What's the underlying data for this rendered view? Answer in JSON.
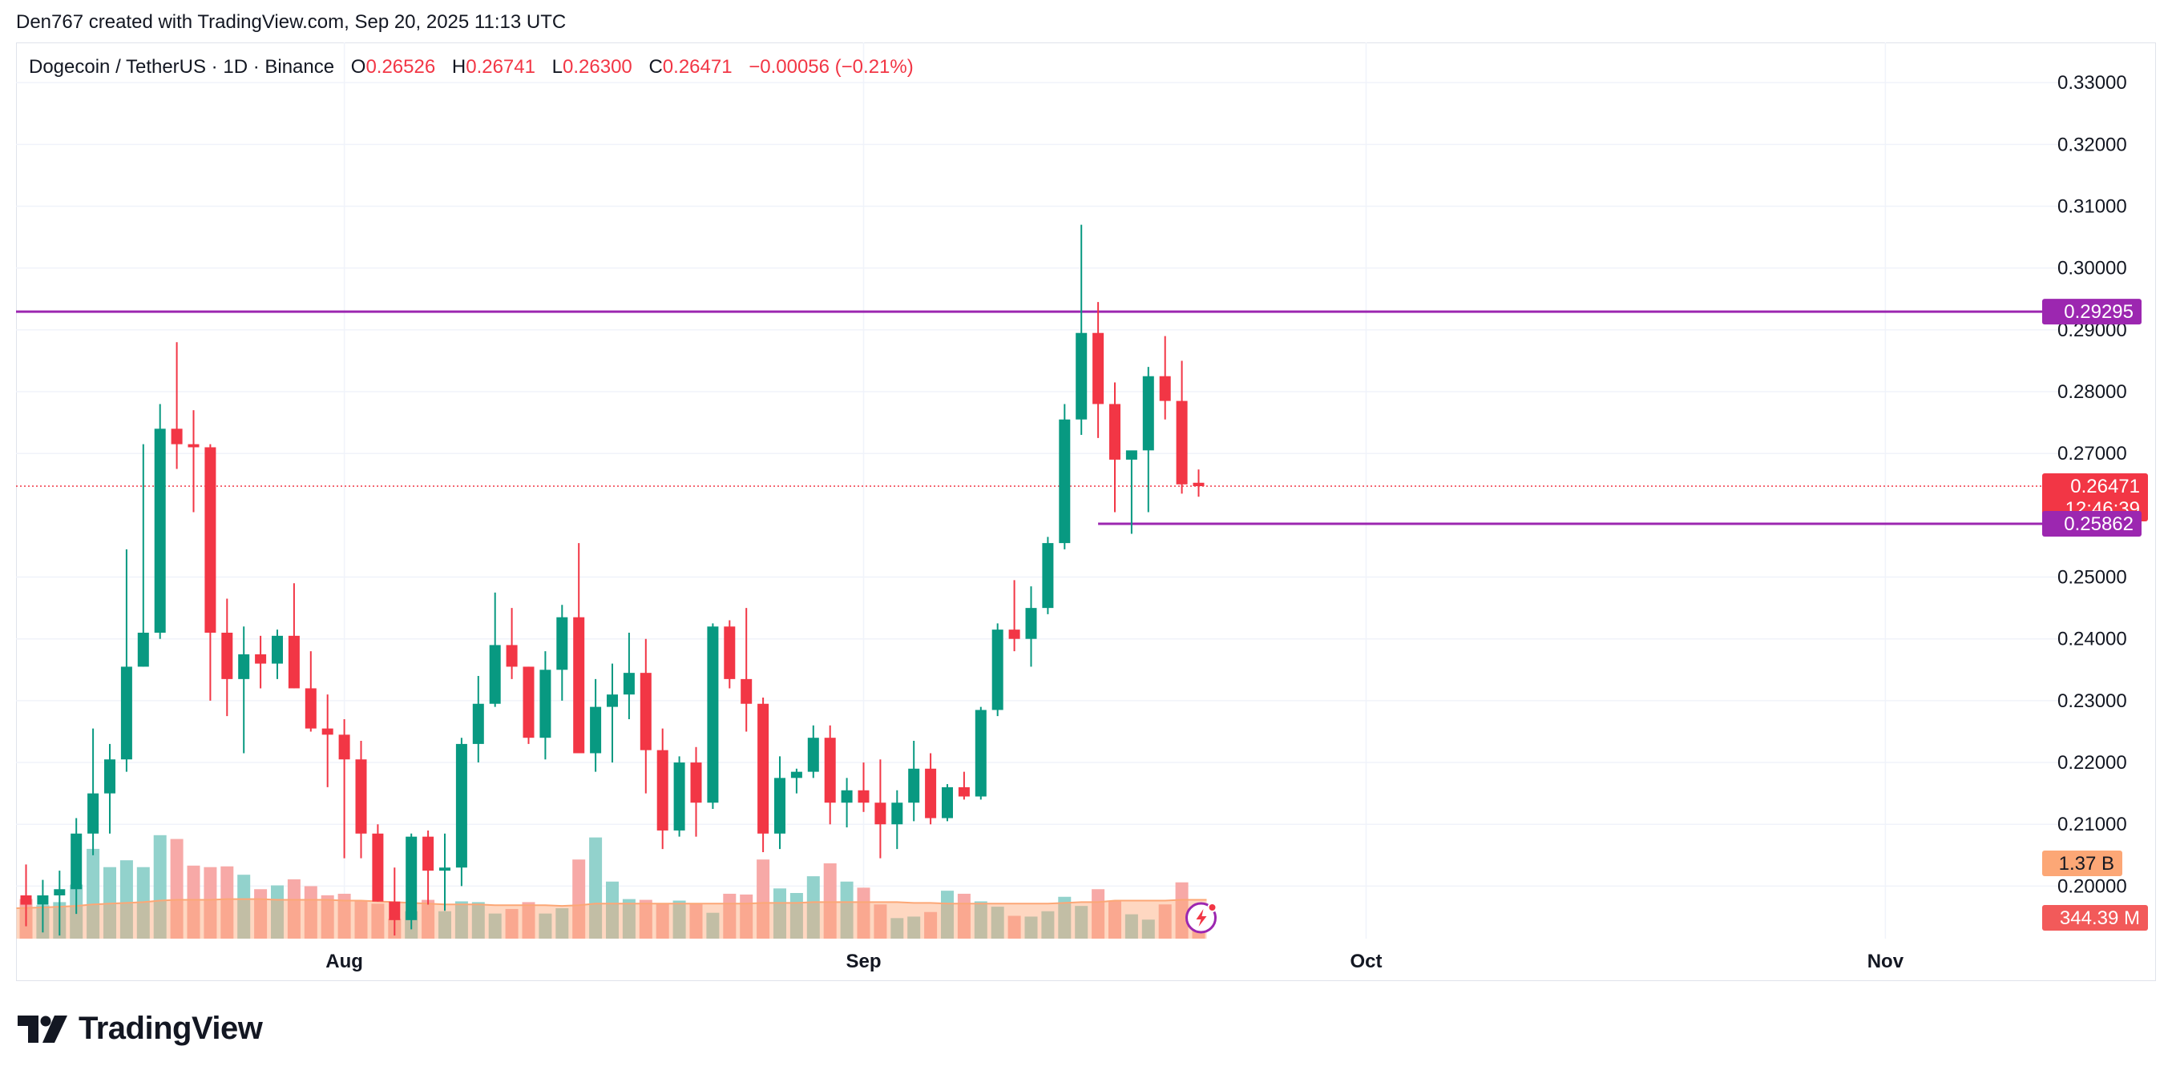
{
  "header": {
    "credit": "Den767 created with TradingView.com, Sep 20, 2025 11:13 UTC"
  },
  "legend": {
    "symbol": "Dogecoin / TetherUS · 1D · Binance",
    "o_label": "O",
    "o_value": "0.26526",
    "h_label": "H",
    "h_value": "0.26741",
    "l_label": "L",
    "l_value": "0.26300",
    "c_label": "C",
    "c_value": "0.26471",
    "change": "−0.00056 (−0.21%)"
  },
  "footer": {
    "brand": "TradingView"
  },
  "colors": {
    "up": "#089981",
    "down": "#f23645",
    "up_volume": "#92d2cc",
    "down_volume": "#f7a9a7",
    "volume_ma": "#fca776",
    "level_line": "#9c27b0",
    "grid": "#f0f3fa"
  },
  "chart_data": {
    "type": "candlestick",
    "title": "Dogecoin / TetherUS · 1D · Binance",
    "y_axis": {
      "ticks": [
        "0.33000",
        "0.32000",
        "0.31000",
        "0.30000",
        "0.29000",
        "0.28000",
        "0.27000",
        "0.25000",
        "0.24000",
        "0.23000",
        "0.22000",
        "0.21000",
        "0.20000"
      ],
      "ylim": [
        0.1915,
        0.3365
      ]
    },
    "x_axis": {
      "ticks": [
        {
          "label": "Aug",
          "index": 19
        },
        {
          "label": "Sep",
          "index": 50
        },
        {
          "label": "Oct",
          "index": 80
        },
        {
          "label": "Nov",
          "index": 111
        }
      ],
      "visible_days": 123
    },
    "price_labels": {
      "resistance": "0.29295",
      "support": "0.25862",
      "last_price": "0.26471",
      "countdown": "12:46:39",
      "volume_ma": "1.37 B",
      "volume": "344.39 M"
    },
    "levels": [
      {
        "name": "resistance",
        "value": 0.29295,
        "from_index": -1
      },
      {
        "name": "support",
        "value": 0.25862,
        "from_index": 64
      }
    ],
    "last_price": 0.26471,
    "candles": [
      {
        "o": 0.1985,
        "h": 0.2035,
        "l": 0.1935,
        "c": 0.197
      },
      {
        "o": 0.197,
        "h": 0.201,
        "l": 0.1925,
        "c": 0.1985
      },
      {
        "o": 0.1985,
        "h": 0.2025,
        "l": 0.192,
        "c": 0.1995
      },
      {
        "o": 0.1995,
        "h": 0.211,
        "l": 0.1955,
        "c": 0.2085
      },
      {
        "o": 0.2085,
        "h": 0.2255,
        "l": 0.205,
        "c": 0.215
      },
      {
        "o": 0.215,
        "h": 0.223,
        "l": 0.2085,
        "c": 0.2205
      },
      {
        "o": 0.2205,
        "h": 0.2545,
        "l": 0.2185,
        "c": 0.2355
      },
      {
        "o": 0.2355,
        "h": 0.2715,
        "l": 0.2355,
        "c": 0.241
      },
      {
        "o": 0.241,
        "h": 0.278,
        "l": 0.24,
        "c": 0.274
      },
      {
        "o": 0.274,
        "h": 0.288,
        "l": 0.2675,
        "c": 0.2715
      },
      {
        "o": 0.2715,
        "h": 0.277,
        "l": 0.2605,
        "c": 0.271
      },
      {
        "o": 0.271,
        "h": 0.2715,
        "l": 0.23,
        "c": 0.241
      },
      {
        "o": 0.241,
        "h": 0.2465,
        "l": 0.2275,
        "c": 0.2335
      },
      {
        "o": 0.2335,
        "h": 0.242,
        "l": 0.2215,
        "c": 0.2375
      },
      {
        "o": 0.2375,
        "h": 0.2405,
        "l": 0.232,
        "c": 0.236
      },
      {
        "o": 0.236,
        "h": 0.2415,
        "l": 0.2335,
        "c": 0.2405
      },
      {
        "o": 0.2405,
        "h": 0.249,
        "l": 0.232,
        "c": 0.232
      },
      {
        "o": 0.232,
        "h": 0.238,
        "l": 0.225,
        "c": 0.2255
      },
      {
        "o": 0.2255,
        "h": 0.231,
        "l": 0.216,
        "c": 0.2245
      },
      {
        "o": 0.2245,
        "h": 0.227,
        "l": 0.2045,
        "c": 0.2205
      },
      {
        "o": 0.2205,
        "h": 0.2235,
        "l": 0.2045,
        "c": 0.2085
      },
      {
        "o": 0.2085,
        "h": 0.21,
        "l": 0.1975,
        "c": 0.1975
      },
      {
        "o": 0.1975,
        "h": 0.203,
        "l": 0.192,
        "c": 0.1945
      },
      {
        "o": 0.1945,
        "h": 0.2085,
        "l": 0.193,
        "c": 0.208
      },
      {
        "o": 0.208,
        "h": 0.209,
        "l": 0.197,
        "c": 0.2025
      },
      {
        "o": 0.2025,
        "h": 0.2085,
        "l": 0.196,
        "c": 0.203
      },
      {
        "o": 0.203,
        "h": 0.224,
        "l": 0.2,
        "c": 0.223
      },
      {
        "o": 0.223,
        "h": 0.234,
        "l": 0.22,
        "c": 0.2295
      },
      {
        "o": 0.2295,
        "h": 0.2475,
        "l": 0.229,
        "c": 0.239
      },
      {
        "o": 0.239,
        "h": 0.245,
        "l": 0.2335,
        "c": 0.2355
      },
      {
        "o": 0.2355,
        "h": 0.2355,
        "l": 0.223,
        "c": 0.224
      },
      {
        "o": 0.224,
        "h": 0.238,
        "l": 0.2205,
        "c": 0.235
      },
      {
        "o": 0.235,
        "h": 0.2455,
        "l": 0.23,
        "c": 0.2435
      },
      {
        "o": 0.2435,
        "h": 0.2555,
        "l": 0.2225,
        "c": 0.2215
      },
      {
        "o": 0.2215,
        "h": 0.2335,
        "l": 0.2185,
        "c": 0.229
      },
      {
        "o": 0.229,
        "h": 0.236,
        "l": 0.22,
        "c": 0.231
      },
      {
        "o": 0.231,
        "h": 0.241,
        "l": 0.227,
        "c": 0.2345
      },
      {
        "o": 0.2345,
        "h": 0.24,
        "l": 0.215,
        "c": 0.222
      },
      {
        "o": 0.222,
        "h": 0.2255,
        "l": 0.206,
        "c": 0.209
      },
      {
        "o": 0.209,
        "h": 0.221,
        "l": 0.208,
        "c": 0.22
      },
      {
        "o": 0.22,
        "h": 0.2225,
        "l": 0.208,
        "c": 0.2135
      },
      {
        "o": 0.2135,
        "h": 0.2425,
        "l": 0.2125,
        "c": 0.242
      },
      {
        "o": 0.242,
        "h": 0.243,
        "l": 0.232,
        "c": 0.2335
      },
      {
        "o": 0.2335,
        "h": 0.245,
        "l": 0.225,
        "c": 0.2295
      },
      {
        "o": 0.2295,
        "h": 0.2305,
        "l": 0.2055,
        "c": 0.2085
      },
      {
        "o": 0.2085,
        "h": 0.221,
        "l": 0.206,
        "c": 0.2175
      },
      {
        "o": 0.2175,
        "h": 0.219,
        "l": 0.215,
        "c": 0.2185
      },
      {
        "o": 0.2185,
        "h": 0.226,
        "l": 0.2175,
        "c": 0.224
      },
      {
        "o": 0.224,
        "h": 0.226,
        "l": 0.21,
        "c": 0.2135
      },
      {
        "o": 0.2135,
        "h": 0.2175,
        "l": 0.2095,
        "c": 0.2155
      },
      {
        "o": 0.2155,
        "h": 0.22,
        "l": 0.212,
        "c": 0.2135
      },
      {
        "o": 0.2135,
        "h": 0.2205,
        "l": 0.2045,
        "c": 0.21
      },
      {
        "o": 0.21,
        "h": 0.2155,
        "l": 0.206,
        "c": 0.2135
      },
      {
        "o": 0.2135,
        "h": 0.2235,
        "l": 0.2105,
        "c": 0.219
      },
      {
        "o": 0.219,
        "h": 0.2215,
        "l": 0.21,
        "c": 0.211
      },
      {
        "o": 0.211,
        "h": 0.2165,
        "l": 0.2105,
        "c": 0.216
      },
      {
        "o": 0.216,
        "h": 0.2185,
        "l": 0.214,
        "c": 0.2145
      },
      {
        "o": 0.2145,
        "h": 0.229,
        "l": 0.214,
        "c": 0.2285
      },
      {
        "o": 0.2285,
        "h": 0.2425,
        "l": 0.2275,
        "c": 0.2415
      },
      {
        "o": 0.2415,
        "h": 0.2495,
        "l": 0.238,
        "c": 0.24
      },
      {
        "o": 0.24,
        "h": 0.2485,
        "l": 0.2355,
        "c": 0.245
      },
      {
        "o": 0.245,
        "h": 0.2565,
        "l": 0.244,
        "c": 0.2555
      },
      {
        "o": 0.2555,
        "h": 0.278,
        "l": 0.2545,
        "c": 0.2755
      },
      {
        "o": 0.2755,
        "h": 0.307,
        "l": 0.273,
        "c": 0.2895
      },
      {
        "o": 0.2895,
        "h": 0.2945,
        "l": 0.2725,
        "c": 0.278
      },
      {
        "o": 0.278,
        "h": 0.2815,
        "l": 0.2605,
        "c": 0.269
      },
      {
        "o": 0.269,
        "h": 0.27,
        "l": 0.257,
        "c": 0.2705
      },
      {
        "o": 0.2705,
        "h": 0.284,
        "l": 0.2605,
        "c": 0.2825
      },
      {
        "o": 0.2825,
        "h": 0.289,
        "l": 0.2755,
        "c": 0.2785
      },
      {
        "o": 0.2785,
        "h": 0.285,
        "l": 0.2635,
        "c": 0.265
      },
      {
        "o": 0.26526,
        "h": 0.26741,
        "l": 0.263,
        "c": 0.26471
      }
    ],
    "volume": [
      5.2,
      4.4,
      4.8,
      7.1,
      11.8,
      9.4,
      10.3,
      9.4,
      13.6,
      13.1,
      9.6,
      9.4,
      9.5,
      8.4,
      6.5,
      7.0,
      7.8,
      6.9,
      5.7,
      5.9,
      5.0,
      4.6,
      2.6,
      3.6,
      5.1,
      3.6,
      4.9,
      4.8,
      3.3,
      3.9,
      4.8,
      3.3,
      4.0,
      10.4,
      13.3,
      7.5,
      5.2,
      5.1,
      4.6,
      5.0,
      4.6,
      3.4,
      5.9,
      5.8,
      10.4,
      6.6,
      6.0,
      8.2,
      9.9,
      7.5,
      6.7,
      4.5,
      2.7,
      2.9,
      3.5,
      6.3,
      5.9,
      4.9,
      4.2,
      3.0,
      2.9,
      3.6,
      5.5,
      4.3,
      6.5,
      5.0,
      3.2,
      2.5,
      4.5,
      7.4,
      2.2
    ],
    "volume_ma": [
      4.0,
      4.1,
      4.2,
      4.3,
      4.5,
      4.6,
      4.7,
      4.8,
      5.0,
      5.1,
      5.1,
      5.1,
      5.2,
      5.2,
      5.2,
      5.1,
      5.1,
      5.1,
      5.1,
      5.0,
      5.0,
      4.9,
      4.8,
      4.7,
      4.6,
      4.5,
      4.5,
      4.5,
      4.4,
      4.4,
      4.4,
      4.4,
      4.3,
      4.4,
      4.6,
      4.6,
      4.6,
      4.6,
      4.6,
      4.6,
      4.6,
      4.6,
      4.6,
      4.6,
      4.7,
      4.7,
      4.7,
      4.8,
      4.8,
      4.8,
      4.8,
      4.8,
      4.8,
      4.7,
      4.7,
      4.6,
      4.6,
      4.6,
      4.6,
      4.6,
      4.6,
      4.6,
      4.7,
      4.8,
      4.8,
      5.0,
      5.0,
      5.0,
      5.0,
      5.1,
      5.1
    ]
  }
}
